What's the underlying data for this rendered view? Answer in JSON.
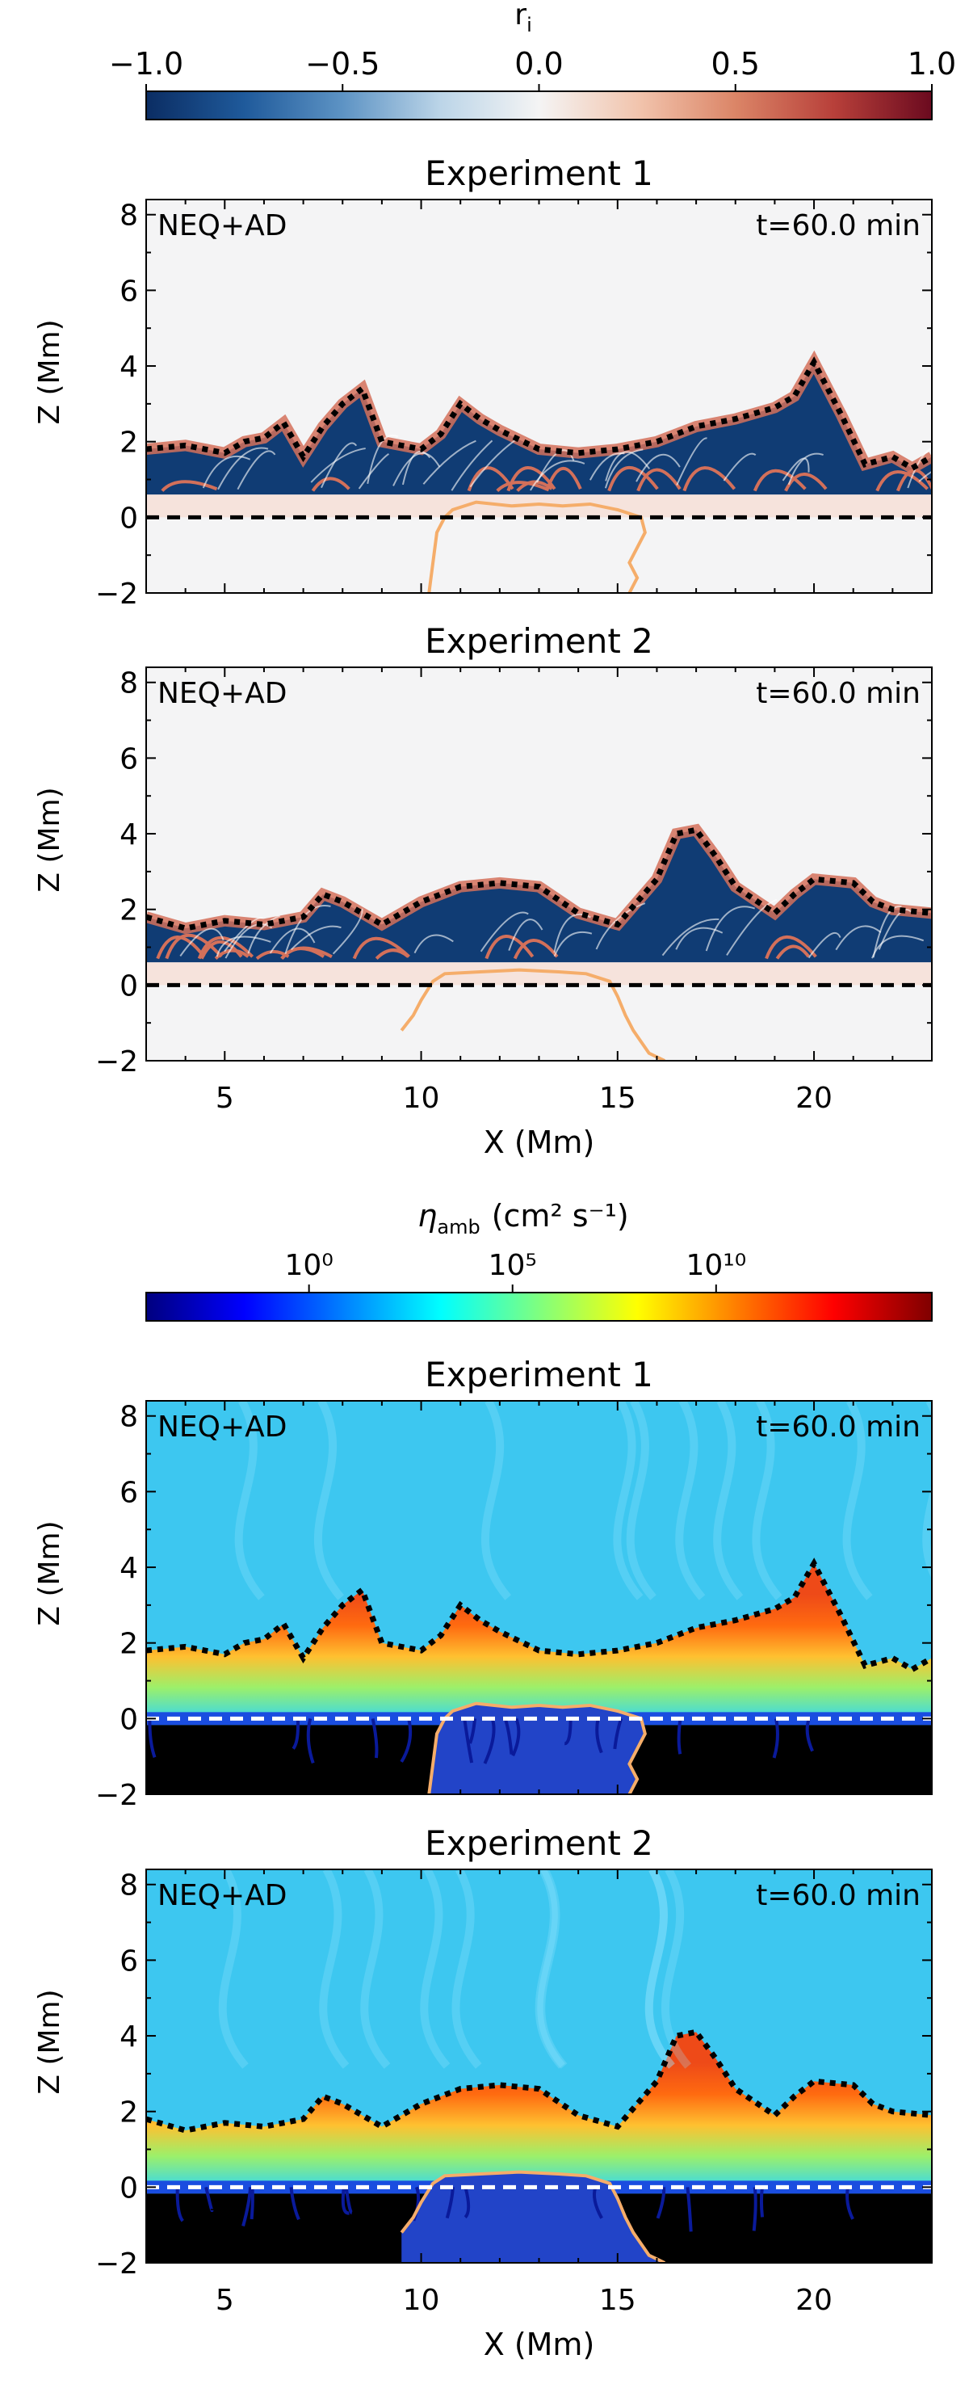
{
  "figure": {
    "colorbar_ri": {
      "label": "r",
      "label_sub": "i",
      "ticks": [
        "−1.0",
        "−0.5",
        "0.0",
        "0.5",
        "1.0"
      ],
      "tick_values": [
        -1.0,
        -0.5,
        0.0,
        0.5,
        1.0
      ],
      "range": [
        -1.0,
        1.0
      ],
      "colormap": [
        "#0b2d63",
        "#1f5a9b",
        "#5d93c4",
        "#bcd5e8",
        "#f4f4f4",
        "#f2c5ae",
        "#db8567",
        "#b8403a",
        "#6b0a1f"
      ]
    },
    "colorbar_eta": {
      "label": "η",
      "label_sub": "amb",
      "label_units": "(cm² s⁻¹)",
      "ticks": [
        "10⁰",
        "10⁵",
        "10¹⁰"
      ],
      "tick_log_values": [
        0,
        5,
        10
      ],
      "range_log": [
        -4,
        15.3
      ],
      "colormap": [
        "#00007f",
        "#0000ff",
        "#007fff",
        "#00ffff",
        "#7fff7f",
        "#ffff00",
        "#ff7f00",
        "#ff0000",
        "#7f0000"
      ]
    },
    "panel_common": {
      "tag": "NEQ+AD",
      "time_label": "t=60.0 min",
      "xlabel": "X (Mm)",
      "ylabel": "Z (Mm)",
      "xlim": [
        3,
        23
      ],
      "ylim": [
        -2,
        8.4
      ],
      "xticks": [
        5,
        10,
        15,
        20
      ],
      "yticks": [
        -2,
        0,
        2,
        4,
        6,
        8
      ]
    },
    "panel_titles": [
      "Experiment 1",
      "Experiment 2",
      "Experiment 1",
      "Experiment 2"
    ],
    "colors": {
      "contour_orange": "#f5ad6a",
      "ri_background": "#f4f4f5",
      "ri_dark": "#103c74",
      "ri_red": "#d3705a",
      "eta_background": "#3dc7f0",
      "eta_hot": "#ee4a18",
      "eta_warm": "#ffc030",
      "eta_deep": "#0a1a9a",
      "eta_black": "#000000"
    }
  },
  "chart_data": [
    {
      "type": "heatmap",
      "title": "Experiment 1",
      "quantity": "r_i",
      "xlabel": "X (Mm)",
      "ylabel": "Z (Mm)",
      "xlim": [
        3,
        23
      ],
      "ylim": [
        -2,
        8.4
      ],
      "colorbar_range": [
        -1.0,
        1.0
      ],
      "annotations": [
        "NEQ+AD",
        "t=60.0 min"
      ],
      "reference_line_z": 0,
      "top_boundary": {
        "x": [
          3,
          4,
          5,
          5.5,
          6,
          6.5,
          7,
          7.5,
          8,
          8.5,
          9,
          9.5,
          10,
          10.5,
          11,
          11.5,
          12,
          13,
          14,
          15,
          16,
          17,
          18,
          19,
          19.5,
          20,
          20.3,
          20.7,
          21.3,
          22,
          22.5,
          23
        ],
        "z": [
          1.8,
          1.9,
          1.7,
          2.0,
          2.1,
          2.5,
          1.6,
          2.4,
          3.0,
          3.4,
          2.0,
          1.9,
          1.8,
          2.2,
          3.0,
          2.6,
          2.3,
          1.8,
          1.7,
          1.8,
          2.0,
          2.4,
          2.6,
          2.9,
          3.2,
          4.1,
          3.5,
          2.7,
          1.4,
          1.6,
          1.3,
          1.6
        ]
      },
      "orange_contour": {
        "x": [
          10.2,
          10.3,
          10.4,
          10.6,
          10.8,
          11.4,
          12.3,
          13.0,
          13.6,
          14.3,
          15.0,
          15.6,
          15.7,
          15.5,
          15.3,
          15.5,
          15.3
        ],
        "z": [
          -2.0,
          -1.2,
          -0.4,
          0.0,
          0.2,
          0.4,
          0.3,
          0.35,
          0.3,
          0.35,
          0.2,
          0.0,
          -0.4,
          -0.8,
          -1.2,
          -1.6,
          -2.0
        ]
      }
    },
    {
      "type": "heatmap",
      "title": "Experiment 2",
      "quantity": "r_i",
      "xlabel": "X (Mm)",
      "ylabel": "Z (Mm)",
      "xlim": [
        3,
        23
      ],
      "ylim": [
        -2,
        8.4
      ],
      "colorbar_range": [
        -1.0,
        1.0
      ],
      "annotations": [
        "NEQ+AD",
        "t=60.0 min"
      ],
      "reference_line_z": 0,
      "top_boundary": {
        "x": [
          3,
          4,
          5,
          6,
          7,
          7.5,
          8,
          9,
          10,
          11,
          12,
          13,
          14,
          15,
          16,
          16.5,
          17,
          17.5,
          18,
          19,
          19.5,
          20,
          21,
          21.5,
          22,
          23
        ],
        "z": [
          1.8,
          1.5,
          1.7,
          1.6,
          1.8,
          2.4,
          2.2,
          1.6,
          2.2,
          2.6,
          2.7,
          2.6,
          1.9,
          1.6,
          2.8,
          4.0,
          4.1,
          3.4,
          2.6,
          1.9,
          2.4,
          2.8,
          2.7,
          2.2,
          2.0,
          1.9
        ]
      },
      "orange_contour": {
        "x": [
          9.5,
          9.8,
          10.0,
          10.3,
          10.6,
          11.5,
          12.5,
          13.5,
          14.2,
          14.8,
          15.0,
          15.2,
          15.4,
          15.6,
          15.8,
          16.2
        ],
        "z": [
          -1.2,
          -0.8,
          -0.4,
          0.1,
          0.3,
          0.35,
          0.4,
          0.35,
          0.3,
          0.1,
          -0.3,
          -0.8,
          -1.2,
          -1.5,
          -1.8,
          -2.0
        ]
      }
    },
    {
      "type": "heatmap",
      "title": "Experiment 1",
      "quantity": "eta_amb",
      "xlabel": "X (Mm)",
      "ylabel": "Z (Mm)",
      "xlim": [
        3,
        23
      ],
      "ylim": [
        -2,
        8.4
      ],
      "colorbar_range_log10": [
        -4,
        15.3
      ],
      "annotations": [
        "NEQ+AD",
        "t=60.0 min"
      ],
      "reference_line_z": 0,
      "top_boundary": {
        "x": [
          3,
          4,
          5,
          5.5,
          6,
          6.5,
          7,
          7.5,
          8,
          8.5,
          9,
          9.5,
          10,
          10.5,
          11,
          11.5,
          12,
          13,
          14,
          15,
          16,
          17,
          18,
          19,
          19.5,
          20,
          20.3,
          20.7,
          21.3,
          22,
          22.5,
          23
        ],
        "z": [
          1.8,
          1.9,
          1.7,
          2.0,
          2.1,
          2.5,
          1.6,
          2.4,
          3.0,
          3.4,
          2.0,
          1.9,
          1.8,
          2.2,
          3.0,
          2.6,
          2.3,
          1.8,
          1.7,
          1.8,
          2.0,
          2.4,
          2.6,
          2.9,
          3.2,
          4.1,
          3.5,
          2.7,
          1.4,
          1.6,
          1.3,
          1.6
        ]
      },
      "orange_contour": {
        "x": [
          10.2,
          10.3,
          10.4,
          10.6,
          10.8,
          11.4,
          12.3,
          13.0,
          13.6,
          14.3,
          15.0,
          15.6,
          15.7,
          15.5,
          15.3,
          15.5,
          15.3
        ],
        "z": [
          -2.0,
          -1.2,
          -0.4,
          0.0,
          0.2,
          0.4,
          0.3,
          0.35,
          0.3,
          0.35,
          0.2,
          0.0,
          -0.4,
          -0.8,
          -1.2,
          -1.6,
          -2.0
        ]
      }
    },
    {
      "type": "heatmap",
      "title": "Experiment 2",
      "quantity": "eta_amb",
      "xlabel": "X (Mm)",
      "ylabel": "Z (Mm)",
      "xlim": [
        3,
        23
      ],
      "ylim": [
        -2,
        8.4
      ],
      "colorbar_range_log10": [
        -4,
        15.3
      ],
      "annotations": [
        "NEQ+AD",
        "t=60.0 min"
      ],
      "reference_line_z": 0,
      "top_boundary": {
        "x": [
          3,
          4,
          5,
          6,
          7,
          7.5,
          8,
          9,
          10,
          11,
          12,
          13,
          14,
          15,
          16,
          16.5,
          17,
          17.5,
          18,
          19,
          19.5,
          20,
          21,
          21.5,
          22,
          23
        ],
        "z": [
          1.8,
          1.5,
          1.7,
          1.6,
          1.8,
          2.4,
          2.2,
          1.6,
          2.2,
          2.6,
          2.7,
          2.6,
          1.9,
          1.6,
          2.8,
          4.0,
          4.1,
          3.4,
          2.6,
          1.9,
          2.4,
          2.8,
          2.7,
          2.2,
          2.0,
          1.9
        ]
      },
      "orange_contour": {
        "x": [
          9.5,
          9.8,
          10.0,
          10.3,
          10.6,
          11.5,
          12.5,
          13.5,
          14.2,
          14.8,
          15.0,
          15.2,
          15.4,
          15.6,
          15.8,
          16.2
        ],
        "z": [
          -1.2,
          -0.8,
          -0.4,
          0.1,
          0.3,
          0.35,
          0.4,
          0.35,
          0.3,
          0.1,
          -0.3,
          -0.8,
          -1.2,
          -1.5,
          -1.8,
          -2.0
        ]
      }
    }
  ]
}
